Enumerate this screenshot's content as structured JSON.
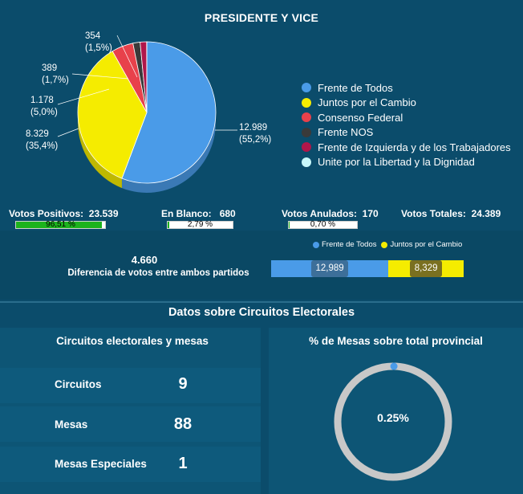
{
  "title": "PRESIDENTE Y VICE",
  "chart_data": [
    {
      "type": "pie",
      "title": "PRESIDENTE Y VICE",
      "series": [
        {
          "name": "Frente de Todos",
          "value": 12989,
          "label_value": "12.989",
          "label_pct": "(55,2%)",
          "color": "#4a9be8"
        },
        {
          "name": "Juntos por el Cambio",
          "value": 8329,
          "label_value": "8.329",
          "label_pct": "(35,4%)",
          "color": "#f5ec00"
        },
        {
          "name": "Consenso Federal",
          "value": 1178,
          "label_value": "1.178",
          "label_pct": "(5,0%)",
          "color": "#e8414b"
        },
        {
          "name": "Frente NOS",
          "value": 389,
          "label_value": "389",
          "label_pct": "(1,7%)",
          "color": "#3a3a3a"
        },
        {
          "name": "Frente de Izquierda y de los Trabajadores",
          "value": 354,
          "label_value": "354",
          "label_pct": "(1,5%)",
          "color": "#b0164a"
        },
        {
          "name": "Unite por la Libertad y la Dignidad",
          "value": 7,
          "label_value": "",
          "label_pct": "",
          "color": "#c8f7fa"
        }
      ],
      "legend_position": "right"
    },
    {
      "type": "bar",
      "orientation": "horizontal-stacked",
      "legend": [
        "Frente de Todos",
        "Juntos por el Cambio"
      ],
      "values": [
        12989,
        8329
      ],
      "labels": [
        "12,989",
        "8,329"
      ],
      "colors": [
        "#4a9be8",
        "#f5ec00"
      ]
    },
    {
      "type": "pie",
      "subtype": "donut",
      "title": "% de Mesas sobre total provincial",
      "value_pct": 0.25,
      "label": "0.25%"
    }
  ],
  "stats": {
    "positivos": {
      "label": "Votos Positivos:",
      "value": "23.539",
      "bar_text": "96,51 %",
      "fraction": 0.9651
    },
    "blanco": {
      "label": "En Blanco:",
      "value": "680",
      "bar_text": "2,79 %",
      "fraction": 0.0279
    },
    "anulados": {
      "label": "Votos Anulados:",
      "value": "170",
      "bar_text": "0,70 %",
      "fraction": 0.007
    },
    "totales": {
      "label": "Votos Totales:",
      "value": "24.389"
    }
  },
  "diferencia": {
    "value": "4.660",
    "label": "Diferencia de votos entre ambos partidos"
  },
  "section_title": "Datos sobre Circuitos Electorales",
  "circuitos": {
    "title": "Circuitos electorales y mesas",
    "rows": [
      {
        "label": "Circuitos",
        "value": "9"
      },
      {
        "label": "Mesas",
        "value": "88"
      },
      {
        "label": "Mesas Especiales",
        "value": "1"
      }
    ]
  },
  "mesas_pct": {
    "title": "% de Mesas sobre total provincial",
    "label": "0.25%"
  }
}
